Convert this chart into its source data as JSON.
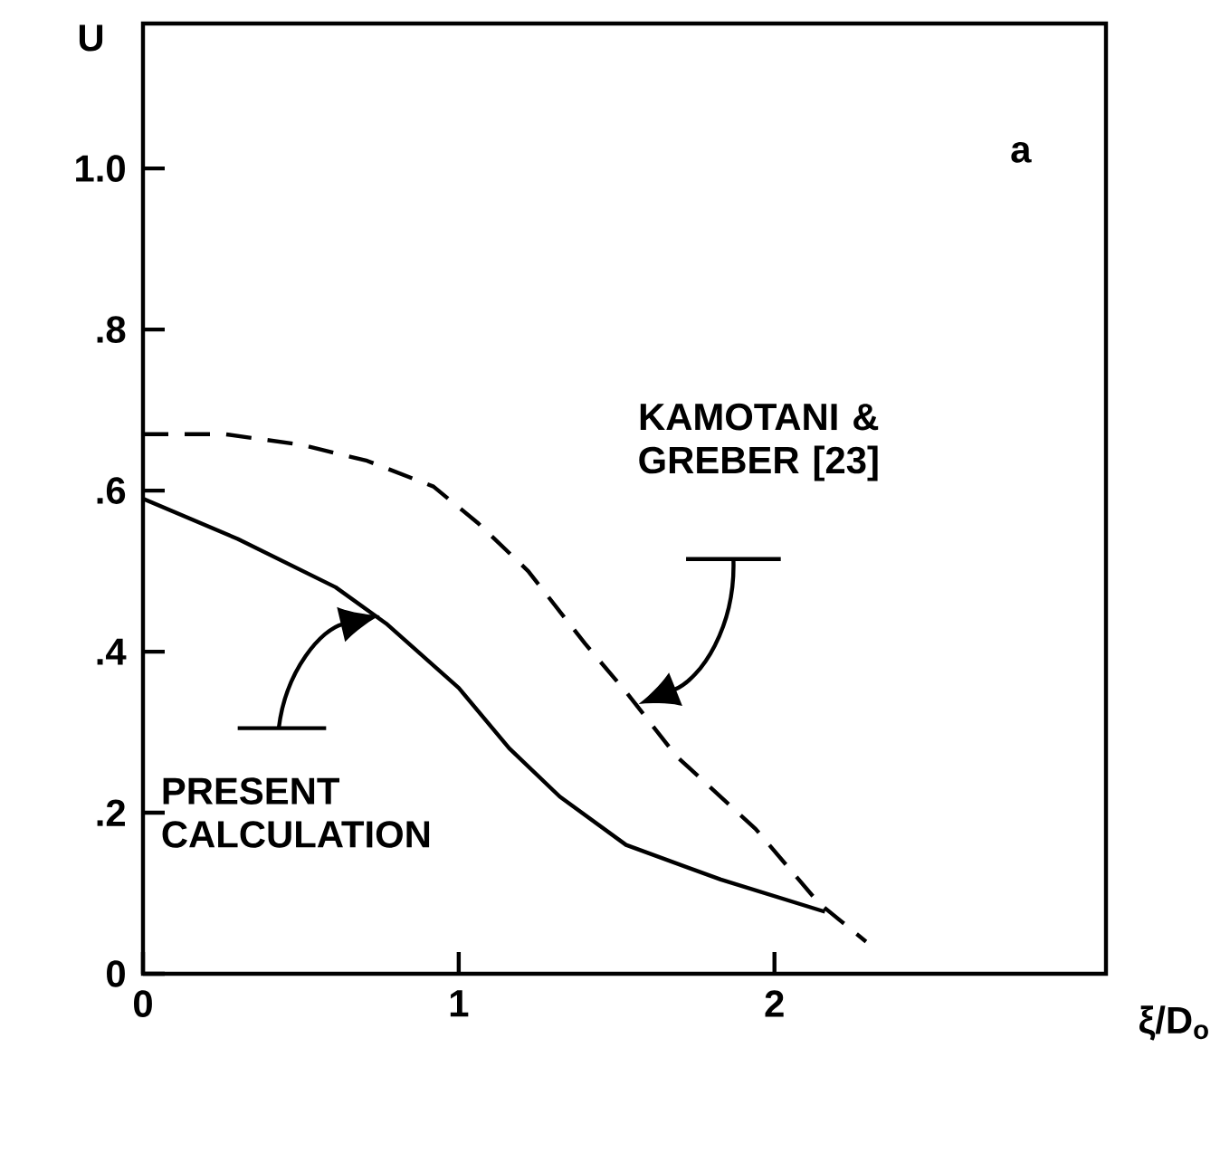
{
  "chart_data": {
    "type": "line",
    "xlabel": "ξ/D$_{o}$",
    "ylabel": "U",
    "xlim": [
      0,
      3.05
    ],
    "ylim": [
      0,
      1.18
    ],
    "xticks": [
      0,
      1,
      2
    ],
    "yticks": [
      0,
      {
        "value": 0.2,
        "label": ".2"
      },
      {
        "value": 0.4,
        "label": ".4"
      },
      {
        "value": 0.6,
        "label": ".6"
      },
      {
        "value": 0.8,
        "label": ".8"
      },
      {
        "value": 1.0,
        "label": "1.0"
      }
    ],
    "grid": false,
    "series": [
      {
        "color": "#000000",
        "line_style": "solid",
        "x": [
          0,
          0.3,
          0.61,
          0.77,
          1.0,
          1.16,
          1.32,
          1.53,
          1.83,
          2.16
        ],
        "values": [
          0.59,
          0.54,
          0.48,
          0.435,
          0.355,
          0.28,
          0.22,
          0.16,
          0.117,
          0.077
        ]
      },
      {
        "color": "#000000",
        "line_style": "dashed",
        "x": [
          0,
          0.26,
          0.5,
          0.71,
          0.92,
          1.06,
          1.22,
          1.4,
          1.53,
          1.69,
          1.94,
          2.14,
          2.29
        ],
        "values": [
          0.67,
          0.67,
          0.657,
          0.637,
          0.605,
          0.56,
          0.5,
          0.41,
          0.35,
          0.27,
          0.18,
          0.088,
          0.04
        ]
      }
    ],
    "annotations": [
      "a",
      "KAMOTANI & GREBER [23]",
      "PRESENT CALCULATION"
    ]
  }
}
